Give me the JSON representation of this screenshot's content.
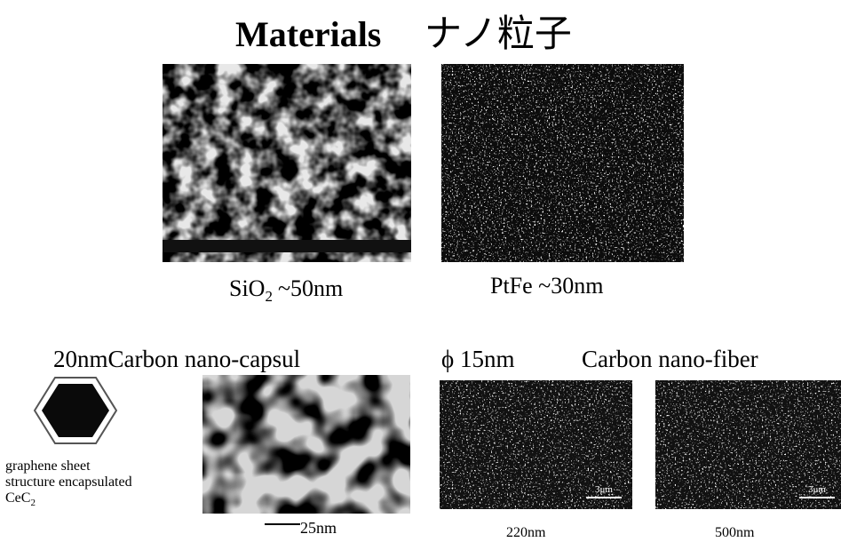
{
  "title": {
    "english": "Materials",
    "japanese": "ナノ粒子"
  },
  "sio2": {
    "formula": "SiO",
    "subscript": "2",
    "size": "~50nm"
  },
  "ptfe": {
    "caption": "PtFe ~30nm"
  },
  "capsule": {
    "heading": "20nmCarbon nano-capsul",
    "description": [
      "graphene sheet",
      "structure encapsulated"
    ],
    "formula": "CeC",
    "subscript": "2",
    "scale_bar": "25nm"
  },
  "fiber": {
    "diameter": "ϕ 15nm",
    "heading": "Carbon nano-fiber",
    "images": [
      {
        "scale_bar": "3μm",
        "caption": "220nm"
      },
      {
        "scale_bar": "3μm",
        "caption": "500nm"
      }
    ]
  }
}
